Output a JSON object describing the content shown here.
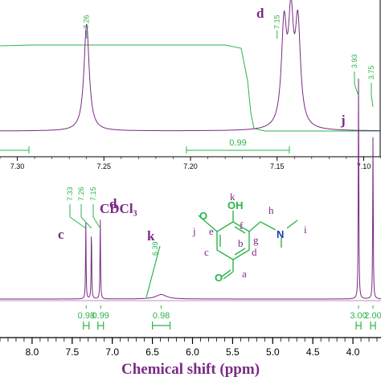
{
  "chart_data": [
    {
      "type": "line",
      "panel": "inset",
      "xlim": [
        7.31,
        7.09
      ],
      "x_ticks": [
        "7.30",
        "7.25",
        "7.20",
        "7.15",
        "7.10"
      ],
      "peak_labels": [
        "7.26",
        "7.15"
      ],
      "peaks": [
        {
          "shift": 7.26,
          "height": 0.93
        },
        {
          "shift": 7.146,
          "height": 0.85
        },
        {
          "shift": 7.142,
          "height": 0.88
        },
        {
          "shift": 7.138,
          "height": 0.86
        }
      ],
      "annotations": [
        "d"
      ],
      "integrals": [
        "0.99"
      ]
    },
    {
      "type": "line",
      "panel": "main",
      "xlabel": "Chemical shift (ppm)",
      "xlim": [
        8.4,
        3.65
      ],
      "x_ticks": [
        "8.0",
        "7.5",
        "7.0",
        "6.5",
        "6.0",
        "5.5",
        "5.0",
        "4.5",
        "4.0"
      ],
      "peak_labels": [
        "7.33",
        "7.26",
        "7.15",
        "6.39",
        "3.93",
        "3.75"
      ],
      "peaks": [
        {
          "shift": 7.33,
          "height": 0.34
        },
        {
          "shift": 7.26,
          "height": 0.32
        },
        {
          "shift": 7.15,
          "height": 0.36
        },
        {
          "shift": 6.39,
          "height": 0.02
        },
        {
          "shift": 3.93,
          "height": 1.0
        },
        {
          "shift": 3.75,
          "height": 0.72
        }
      ],
      "annotations": [
        "CDCl₃",
        "c",
        "d",
        "k",
        "j"
      ],
      "integrals": [
        "0.98",
        "0.99",
        "0.98",
        "3.00",
        "2.00"
      ]
    }
  ],
  "molecule": {
    "atoms": [
      "OH",
      "O",
      "N",
      "O"
    ],
    "site_labels": [
      "k",
      "j",
      "e",
      "f",
      "h",
      "i",
      "g",
      "b",
      "c",
      "d",
      "a"
    ]
  },
  "colors": {
    "spectrum": "#7a2a86",
    "integral": "#2bb54a",
    "annotation": "#7a2a86"
  }
}
